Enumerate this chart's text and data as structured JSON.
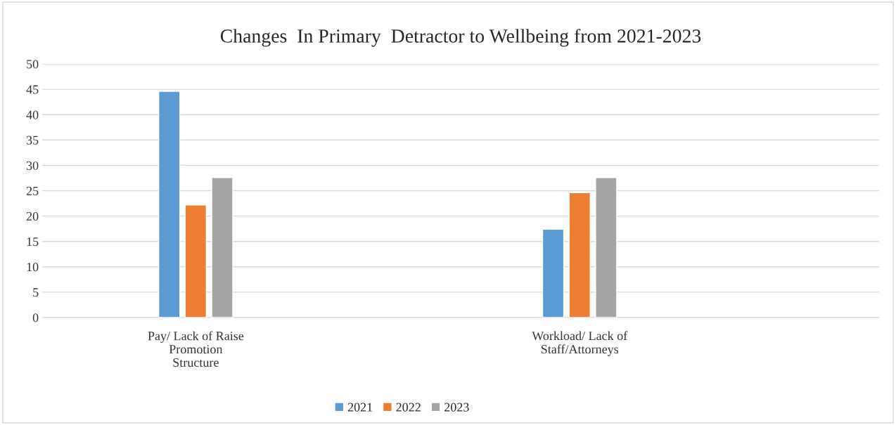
{
  "chart_data": {
    "type": "bar",
    "title": "Changes  In Primary  Detractor to Wellbeing from 2021-2023",
    "categories": [
      "Pay/ Lack of Raise\nPromotion\nStructure",
      "Workload/ Lack of\nStaff/Attorneys"
    ],
    "series": [
      {
        "name": "2021",
        "color": "#5b9bd5",
        "values": [
          44.6,
          17.4
        ]
      },
      {
        "name": "2022",
        "color": "#ed7d31",
        "values": [
          22.2,
          24.6
        ]
      },
      {
        "name": "2023",
        "color": "#a5a5a5",
        "values": [
          27.6,
          27.6
        ]
      }
    ],
    "ylim": [
      0,
      50
    ],
    "yticks": [
      0,
      5,
      10,
      15,
      20,
      25,
      30,
      35,
      40,
      45,
      50
    ],
    "grid": "y",
    "legend": "bottom"
  }
}
